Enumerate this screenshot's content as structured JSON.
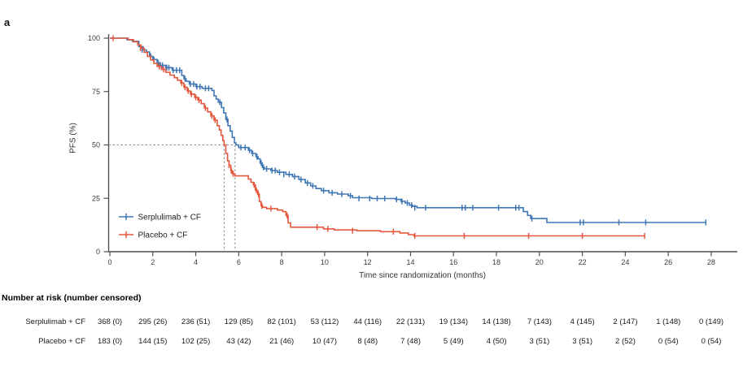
{
  "panel_label": "a",
  "style": {
    "axis_color": "#4f4f4f",
    "dash_color": "#8c8c8c",
    "tick_text_color": "#3a3a3a",
    "legend_text_color": "#222222",
    "serplulimab_color": "#3F76B4",
    "placebo_color": "#E4573C"
  },
  "chart_data": {
    "type": "line",
    "subtype": "kaplan-meier-step",
    "title": "",
    "xlabel": "Time since randomization (months)",
    "ylabel": "PFS (%)",
    "xlim": [
      0,
      28
    ],
    "ylim": [
      0,
      100
    ],
    "x_ticks": [
      0,
      2,
      4,
      6,
      8,
      10,
      12,
      14,
      16,
      18,
      20,
      22,
      24,
      26,
      28
    ],
    "y_ticks": [
      0,
      25,
      50,
      75,
      100
    ],
    "grid": false,
    "legend_position": "inside-lower-left",
    "median_guide": {
      "y": 50,
      "x_values": [
        5.32,
        5.83
      ]
    },
    "median_pfs_months": {
      "serplulimab_cf": 5.8,
      "placebo_cf": 5.3
    },
    "series": [
      {
        "id": "serplulimab-cf",
        "name": "Serplulimab + CF",
        "color": "#3F76B4",
        "steps": [
          [
            0,
            100
          ],
          [
            0.8,
            99.2
          ],
          [
            1.05,
            98.5
          ],
          [
            1.35,
            96
          ],
          [
            1.55,
            94.5
          ],
          [
            1.7,
            93.5
          ],
          [
            1.85,
            91.5
          ],
          [
            2.0,
            90
          ],
          [
            2.2,
            88.5
          ],
          [
            2.35,
            87.3
          ],
          [
            2.6,
            86.2
          ],
          [
            2.9,
            85
          ],
          [
            3.35,
            82.5
          ],
          [
            3.45,
            81
          ],
          [
            3.55,
            79.8
          ],
          [
            3.7,
            78.5
          ],
          [
            4.0,
            77.3
          ],
          [
            4.3,
            76.5
          ],
          [
            4.75,
            75.5
          ],
          [
            4.85,
            73
          ],
          [
            4.95,
            71.5
          ],
          [
            5.05,
            70
          ],
          [
            5.2,
            67.5
          ],
          [
            5.3,
            65
          ],
          [
            5.4,
            62
          ],
          [
            5.5,
            59
          ],
          [
            5.6,
            56.5
          ],
          [
            5.7,
            53.5
          ],
          [
            5.8,
            51
          ],
          [
            5.87,
            50
          ],
          [
            6.0,
            48.8
          ],
          [
            6.45,
            47.5
          ],
          [
            6.6,
            46
          ],
          [
            6.8,
            44.5
          ],
          [
            6.9,
            43.5
          ],
          [
            7.0,
            41.5
          ],
          [
            7.1,
            39.5
          ],
          [
            7.2,
            38.8
          ],
          [
            7.5,
            38
          ],
          [
            7.8,
            37.2
          ],
          [
            8.2,
            36.2
          ],
          [
            8.5,
            35.2
          ],
          [
            8.8,
            33.8
          ],
          [
            9.1,
            32.2
          ],
          [
            9.35,
            30.8
          ],
          [
            9.6,
            29.6
          ],
          [
            9.85,
            28.6
          ],
          [
            10.2,
            27.6
          ],
          [
            10.6,
            27
          ],
          [
            11.1,
            26.2
          ],
          [
            11.3,
            25.3
          ],
          [
            12.2,
            24.9
          ],
          [
            13.3,
            24.5
          ],
          [
            13.55,
            23.6
          ],
          [
            13.75,
            22.8
          ],
          [
            13.95,
            21.8
          ],
          [
            14.1,
            21.2
          ],
          [
            14.3,
            20.6
          ],
          [
            19.25,
            18.8
          ],
          [
            19.45,
            17
          ],
          [
            19.6,
            15.5
          ],
          [
            20.35,
            13.7
          ]
        ],
        "end": [
          27.75,
          13.7
        ],
        "censors": [
          [
            1.5,
            94.5
          ],
          [
            1.9,
            91.5
          ],
          [
            2.05,
            90
          ],
          [
            2.25,
            88.5
          ],
          [
            2.45,
            87.3
          ],
          [
            2.65,
            86.2
          ],
          [
            2.75,
            86.2
          ],
          [
            2.95,
            85
          ],
          [
            3.1,
            85
          ],
          [
            3.25,
            85
          ],
          [
            3.5,
            81
          ],
          [
            3.75,
            78.5
          ],
          [
            3.9,
            78.5
          ],
          [
            4.05,
            77.3
          ],
          [
            4.2,
            77.3
          ],
          [
            4.45,
            76.5
          ],
          [
            4.6,
            76.5
          ],
          [
            5.12,
            70
          ],
          [
            5.45,
            62
          ],
          [
            6.1,
            48.8
          ],
          [
            6.3,
            48.8
          ],
          [
            6.5,
            47.5
          ],
          [
            6.65,
            46
          ],
          [
            6.85,
            44.5
          ],
          [
            7.05,
            41.5
          ],
          [
            7.15,
            39.5
          ],
          [
            7.3,
            38.8
          ],
          [
            7.55,
            38
          ],
          [
            7.7,
            38
          ],
          [
            7.9,
            37.2
          ],
          [
            8.1,
            36.2
          ],
          [
            8.35,
            36.2
          ],
          [
            8.6,
            35.2
          ],
          [
            8.9,
            33.8
          ],
          [
            9.2,
            32.2
          ],
          [
            9.45,
            30.8
          ],
          [
            9.95,
            28.6
          ],
          [
            10.35,
            27.6
          ],
          [
            10.8,
            27
          ],
          [
            11.2,
            26.2
          ],
          [
            11.6,
            24.9
          ],
          [
            12.1,
            24.9
          ],
          [
            12.45,
            24.9
          ],
          [
            12.8,
            24.9
          ],
          [
            13.35,
            24.5
          ],
          [
            13.6,
            23.6
          ],
          [
            13.85,
            22.8
          ],
          [
            14.05,
            21.8
          ],
          [
            14.2,
            20.6
          ],
          [
            14.7,
            20.6
          ],
          [
            16.4,
            20.6
          ],
          [
            16.55,
            20.6
          ],
          [
            16.9,
            20.6
          ],
          [
            18.1,
            20.6
          ],
          [
            18.9,
            20.6
          ],
          [
            19.05,
            20.6
          ],
          [
            19.65,
            15.5
          ],
          [
            21.9,
            13.7
          ],
          [
            22.05,
            13.7
          ],
          [
            23.7,
            13.7
          ],
          [
            24.95,
            13.7
          ],
          [
            27.75,
            13.7
          ]
        ]
      },
      {
        "id": "placebo-cf",
        "name": "Placebo + CF",
        "color": "#E4573C",
        "steps": [
          [
            0,
            100
          ],
          [
            0.85,
            99.3
          ],
          [
            1.1,
            98.3
          ],
          [
            1.3,
            96.8
          ],
          [
            1.45,
            95.3
          ],
          [
            1.6,
            93.4
          ],
          [
            1.75,
            91.5
          ],
          [
            1.9,
            89.8
          ],
          [
            2.05,
            88.2
          ],
          [
            2.2,
            86.8
          ],
          [
            2.4,
            85.4
          ],
          [
            2.6,
            84
          ],
          [
            2.8,
            82.7
          ],
          [
            3.0,
            81.5
          ],
          [
            3.15,
            80.3
          ],
          [
            3.3,
            79
          ],
          [
            3.45,
            77
          ],
          [
            3.6,
            75.3
          ],
          [
            3.75,
            73.8
          ],
          [
            3.95,
            72.3
          ],
          [
            4.1,
            71
          ],
          [
            4.25,
            69.3
          ],
          [
            4.4,
            67.3
          ],
          [
            4.55,
            65.5
          ],
          [
            4.7,
            63.6
          ],
          [
            4.85,
            61.6
          ],
          [
            5.0,
            59
          ],
          [
            5.1,
            57
          ],
          [
            5.18,
            54.5
          ],
          [
            5.26,
            52
          ],
          [
            5.32,
            50
          ],
          [
            5.4,
            46
          ],
          [
            5.48,
            42.5
          ],
          [
            5.55,
            40.5
          ],
          [
            5.63,
            38
          ],
          [
            5.7,
            36.5
          ],
          [
            5.82,
            35.5
          ],
          [
            6.45,
            34
          ],
          [
            6.57,
            32.5
          ],
          [
            6.68,
            31.3
          ],
          [
            6.78,
            28.8
          ],
          [
            6.88,
            26.9
          ],
          [
            6.96,
            23.5
          ],
          [
            7.04,
            21.5
          ],
          [
            7.12,
            20.8
          ],
          [
            7.3,
            20.2
          ],
          [
            7.8,
            19.5
          ],
          [
            8.05,
            18.8
          ],
          [
            8.2,
            17
          ],
          [
            8.3,
            13.5
          ],
          [
            8.42,
            11.5
          ],
          [
            9.95,
            10.7
          ],
          [
            10.45,
            10.2
          ],
          [
            11.5,
            9.8
          ],
          [
            12.6,
            9.4
          ],
          [
            13.5,
            8.8
          ],
          [
            13.9,
            8.0
          ],
          [
            14.15,
            7.4
          ]
        ],
        "end": [
          24.9,
          7.4
        ],
        "censors": [
          [
            0.15,
            100
          ],
          [
            1.42,
            95.3
          ],
          [
            2.3,
            86.8
          ],
          [
            2.5,
            85.4
          ],
          [
            3.35,
            79
          ],
          [
            3.5,
            77
          ],
          [
            3.65,
            75.3
          ],
          [
            3.8,
            73.8
          ],
          [
            4.0,
            72.3
          ],
          [
            4.15,
            71
          ],
          [
            4.45,
            67.3
          ],
          [
            4.75,
            63.6
          ],
          [
            4.9,
            61.6
          ],
          [
            5.55,
            40.5
          ],
          [
            5.65,
            38
          ],
          [
            5.74,
            36.5
          ],
          [
            6.72,
            31.3
          ],
          [
            6.82,
            28.8
          ],
          [
            6.92,
            26.9
          ],
          [
            7.08,
            21.5
          ],
          [
            7.5,
            20.2
          ],
          [
            8.25,
            17
          ],
          [
            9.65,
            11.5
          ],
          [
            10.15,
            10.7
          ],
          [
            11.3,
            9.8
          ],
          [
            13.2,
            9.4
          ],
          [
            14.2,
            7.4
          ],
          [
            16.5,
            7.4
          ],
          [
            19.5,
            7.4
          ],
          [
            22.0,
            7.4
          ],
          [
            24.9,
            7.4
          ]
        ]
      }
    ]
  },
  "risk_table": {
    "title": "Number at risk (number censored)",
    "time_points": [
      0,
      2,
      4,
      6,
      8,
      10,
      12,
      14,
      16,
      18,
      20,
      22,
      24,
      26,
      28
    ],
    "rows": [
      {
        "label": "Serplulimab + CF",
        "values": [
          "368 (0)",
          "295 (26)",
          "236 (51)",
          "129 (85)",
          "82 (101)",
          "53 (112)",
          "44 (116)",
          "22 (131)",
          "19 (134)",
          "14 (138)",
          "7 (143)",
          "4 (145)",
          "2 (147)",
          "1 (148)",
          "0 (149)"
        ]
      },
      {
        "label": "Placebo + CF",
        "values": [
          "183 (0)",
          "144 (15)",
          "102 (25)",
          "43 (42)",
          "21 (46)",
          "10 (47)",
          "8 (48)",
          "7 (48)",
          "5 (49)",
          "4 (50)",
          "3 (51)",
          "3 (51)",
          "2 (52)",
          "0 (54)",
          "0 (54)"
        ]
      }
    ]
  }
}
